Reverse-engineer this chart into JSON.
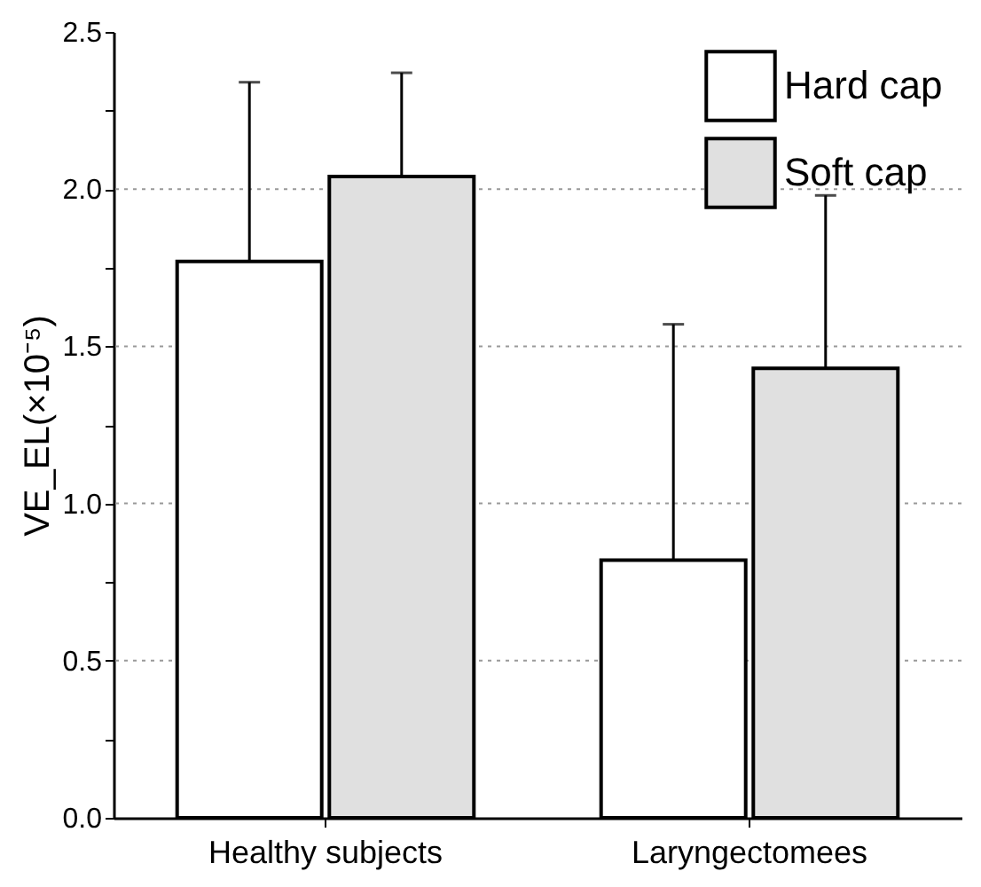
{
  "chart_data": {
    "type": "bar",
    "categories": [
      "Healthy subjects",
      "Laryngectomees"
    ],
    "ylabel": "VE_EL(×10⁻⁵)",
    "series": [
      {
        "name": "Hard cap",
        "color": "#ffffff",
        "values": [
          1.77,
          0.82
        ],
        "errors": [
          [
            1.77,
            2.34
          ],
          [
            0.82,
            1.57
          ]
        ]
      },
      {
        "name": "Soft cap",
        "color": "#e0e0e0",
        "values": [
          2.04,
          1.43
        ],
        "errors": [
          [
            2.04,
            2.37
          ],
          [
            1.43,
            1.98
          ]
        ]
      }
    ],
    "ylim": [
      0,
      2.5
    ],
    "yticks": [
      {
        "value": 0,
        "label": "0.0"
      },
      {
        "value": 0.25,
        "label": null
      },
      0.5,
      {
        "value": 0.75,
        "label": null
      },
      {
        "value": 1,
        "label": "1.0"
      },
      {
        "value": 1.25,
        "label": null
      },
      1.5,
      {
        "value": 1.75,
        "label": null
      },
      {
        "value": 2,
        "label": "2.0"
      },
      {
        "value": 2.25,
        "label": null
      },
      2.5
    ],
    "grid": "y",
    "legend": "top right"
  }
}
